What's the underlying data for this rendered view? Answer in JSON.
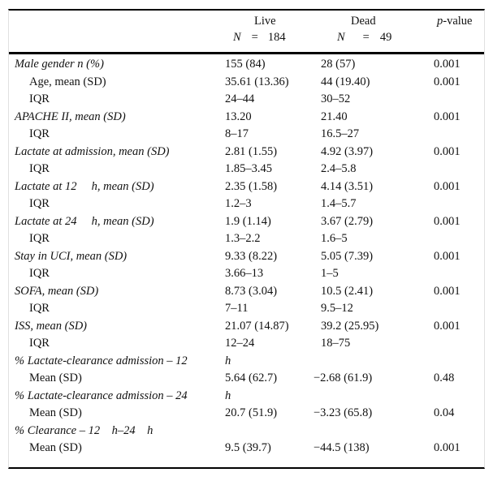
{
  "header": {
    "live": {
      "title": "Live",
      "n_label": "N",
      "eq": "=",
      "n_value": "184"
    },
    "dead": {
      "title": "Dead",
      "n_label": "N",
      "eq": "=",
      "n_value": "49"
    },
    "p": {
      "italic_part": "p",
      "rest": "-value"
    }
  },
  "rows": [
    {
      "label": "Male gender n (%)",
      "style": "italic",
      "live": "155 (84)",
      "dead": "28 (57)",
      "p": "0.001"
    },
    {
      "label": "Age, mean (SD)",
      "style": "indent",
      "live": "35.61 (13.36)",
      "dead": "44 (19.40)",
      "p": "0.001"
    },
    {
      "label": "IQR",
      "style": "indent",
      "live": "24–44",
      "dead": "30–52",
      "p": ""
    },
    {
      "label": "APACHE II, mean (SD)",
      "style": "italic",
      "live": "13.20",
      "dead": "21.40",
      "p": "0.001"
    },
    {
      "label": "IQR",
      "style": "indent",
      "live": "8–17",
      "dead": "16.5–27",
      "p": ""
    },
    {
      "label": "Lactate at admission, mean (SD)",
      "style": "italic",
      "live": "2.81 (1.55)",
      "dead": "4.92 (3.97)",
      "p": "0.001"
    },
    {
      "label": "IQR",
      "style": "indent",
      "live": "1.85–3.45",
      "dead": "2.4–5.8",
      "p": ""
    },
    {
      "label": "Lactate at 12     h, mean (SD)",
      "style": "italic",
      "live": "2.35 (1.58)",
      "dead": "4.14 (3.51)",
      "p": "0.001"
    },
    {
      "label": "IQR",
      "style": "indent",
      "live": "1.2–3",
      "dead": "1.4–5.7",
      "p": ""
    },
    {
      "label": "Lactate at 24     h, mean (SD)",
      "style": "italic",
      "live": "1.9 (1.14)",
      "dead": "3.67 (2.79)",
      "p": "0.001"
    },
    {
      "label": "IQR",
      "style": "indent",
      "live": "1.3–2.2",
      "dead": "1.6–5",
      "p": ""
    },
    {
      "label": "Stay in UCI, mean (SD)",
      "style": "italic",
      "live": "9.33 (8.22)",
      "dead": "5.05 (7.39)",
      "p": "0.001"
    },
    {
      "label": "IQR",
      "style": "indent",
      "live": "3.66–13",
      "dead": "1–5",
      "p": ""
    },
    {
      "label": "SOFA, mean (SD)",
      "style": "italic",
      "live": "8.73 (3.04)",
      "dead": "10.5 (2.41)",
      "p": "0.001"
    },
    {
      "label": "IQR",
      "style": "indent",
      "live": "7–11",
      "dead": "9.5–12",
      "p": ""
    },
    {
      "label": "ISS, mean (SD)",
      "style": "italic",
      "live": "21.07 (14.87)",
      "dead": "39.2 (25.95)",
      "p": "0.001"
    },
    {
      "label": "IQR",
      "style": "indent",
      "live": "12–24",
      "dead": "18–75",
      "p": ""
    },
    {
      "label": "% Lactate-clearance admission – 12",
      "style": "italic",
      "live": "h",
      "live_unit": true,
      "dead": "",
      "p": ""
    },
    {
      "label": "Mean (SD)",
      "style": "indent",
      "live": "5.64 (62.7)",
      "dead": "−2.68 (61.9)",
      "p": "0.48"
    },
    {
      "label": "% Lactate-clearance admission – 24",
      "style": "italic",
      "live": "h",
      "live_unit": true,
      "dead": "",
      "p": ""
    },
    {
      "label": "Mean (SD)",
      "style": "indent",
      "live": "20.7 (51.9)",
      "dead": "−3.23 (65.8)",
      "p": "0.04"
    },
    {
      "label": "% Clearance – 12    h–24    h",
      "style": "italic",
      "live": "",
      "dead": "",
      "p": ""
    },
    {
      "label": "Mean (SD)",
      "style": "indent",
      "live": "9.5 (39.7)",
      "dead": "−44.5 (138)",
      "p": "0.001"
    }
  ]
}
